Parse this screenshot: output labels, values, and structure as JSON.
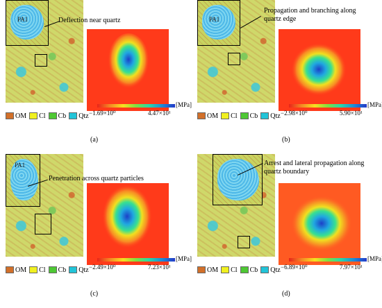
{
  "colors": {
    "om": "#d2702a",
    "cl": "#f0f020",
    "cb": "#4ec834",
    "qtz": "#22c4d8"
  },
  "legend": [
    {
      "key": "om",
      "label": "OM"
    },
    {
      "key": "cl",
      "label": "Cl"
    },
    {
      "key": "cb",
      "label": "Cb"
    },
    {
      "key": "qtz",
      "label": "Qtz"
    }
  ],
  "unit": "[MPa]",
  "inset_label": "PA1",
  "panels": {
    "a": {
      "callout": "Deflection near quartz",
      "cmin": "−1.69×10⁰",
      "cmax": "4.47×10¹",
      "label": "(a)"
    },
    "b": {
      "callout": "Propagation and branching along quartz edge",
      "cmin": "−2.98×10⁰",
      "cmax": "5.90×10¹",
      "label": "(b)"
    },
    "c": {
      "callout": "Penetration across quartz particles",
      "cmin": "−2.49×10⁰",
      "cmax": "7.23×10¹",
      "label": "(c)"
    },
    "d": {
      "callout": "Arrest and lateral propagation along quartz boundary",
      "cmin": "−6.89×10⁰",
      "cmax": "7.97×10¹",
      "label": "(d)"
    }
  }
}
